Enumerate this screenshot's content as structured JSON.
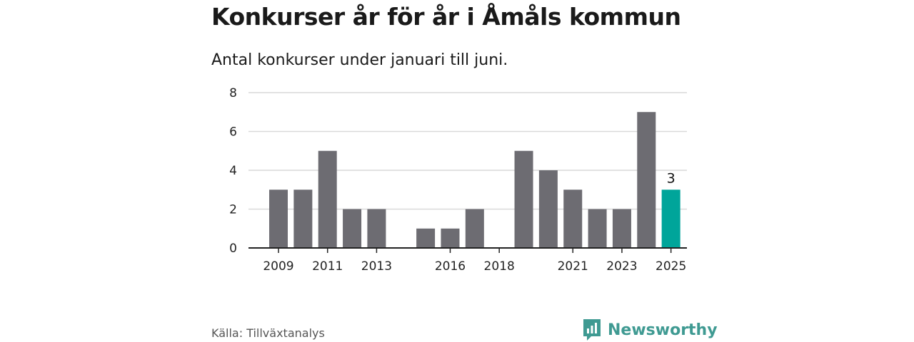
{
  "title": "Konkurser år för år i Åmåls kommun",
  "subtitle": "Antal konkurser under januari till juni.",
  "source": "Källa: Tillväxtanalys",
  "brand": {
    "name": "Newsworthy",
    "icon": "newsworthy-logo-icon",
    "color": "#3f9a92"
  },
  "colors": {
    "bar": "#6d6c72",
    "highlight": "#00a59a",
    "grid": "#d9d9d9",
    "axis": "#222222"
  },
  "chart_data": {
    "type": "bar",
    "x": [
      2009,
      2010,
      2011,
      2012,
      2013,
      2014,
      2015,
      2016,
      2017,
      2018,
      2019,
      2020,
      2021,
      2022,
      2023,
      2024,
      2025
    ],
    "values": [
      3,
      3,
      5,
      2,
      2,
      0,
      1,
      1,
      2,
      0,
      5,
      4,
      3,
      2,
      2,
      7,
      3
    ],
    "x_tick_labels": [
      "2009",
      "2011",
      "2013",
      "2016",
      "2018",
      "2021",
      "2023",
      "2025"
    ],
    "y_ticks": [
      0,
      2,
      4,
      6,
      8
    ],
    "ylim": [
      0,
      8
    ],
    "grid": true,
    "highlight": {
      "x": 2025,
      "label": "3"
    },
    "title": "Konkurser år för år i Åmåls kommun",
    "xlabel": "",
    "ylabel": ""
  }
}
